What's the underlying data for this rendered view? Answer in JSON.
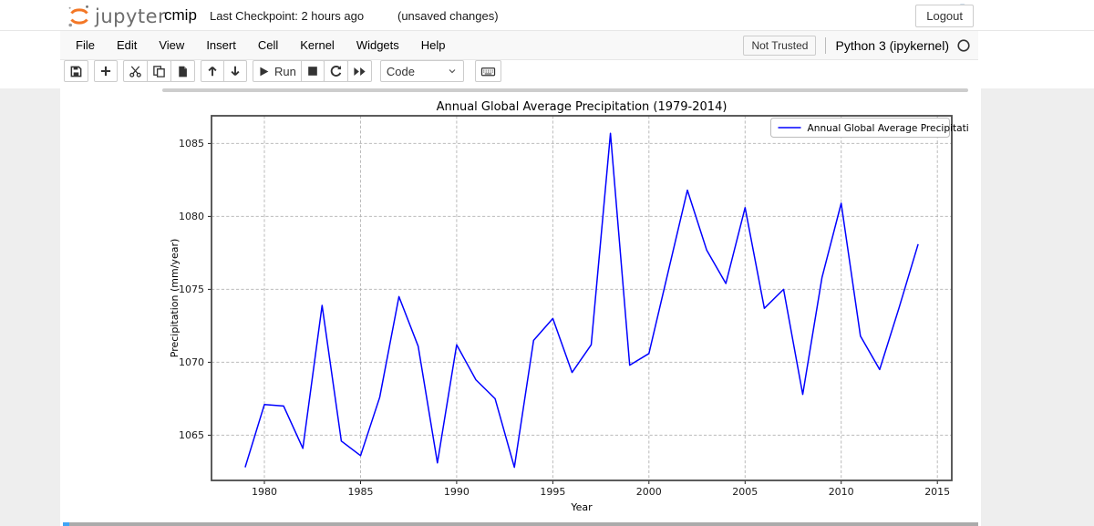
{
  "header": {
    "app_name": "jupyter",
    "notebook_title": "cmip",
    "checkpoint": "Last Checkpoint: 2 hours ago",
    "unsaved": "(unsaved changes)",
    "logout_label": "Logout"
  },
  "menubar": {
    "items": [
      "File",
      "Edit",
      "View",
      "Insert",
      "Cell",
      "Kernel",
      "Widgets",
      "Help"
    ],
    "not_trusted_label": "Not Trusted",
    "kernel_name": "Python 3 (ipykernel)"
  },
  "toolbar": {
    "run_label": "Run",
    "cell_type_value": "Code"
  },
  "colors": {
    "line_blue": "#0000ff",
    "jupyter_orange": "#f37726",
    "python_blue": "#3776ab",
    "python_yellow": "#ffd43b",
    "selected_cell_blue": "#42a5f5"
  },
  "chart_data": {
    "type": "line",
    "title": "Annual Global Average Precipitation (1979-2014)",
    "xlabel": "Year",
    "ylabel": "Precipitation (mm/year)",
    "xlim": [
      1977.25,
      2015.75
    ],
    "ylim": [
      1061.9,
      1086.9
    ],
    "xticks": [
      1980,
      1985,
      1990,
      1995,
      2000,
      2005,
      2010,
      2015
    ],
    "yticks": [
      1065,
      1070,
      1075,
      1080,
      1085
    ],
    "grid": true,
    "legend": {
      "position": "upper right",
      "entries": [
        "Annual Global Average Precipitation"
      ]
    },
    "x": [
      1979,
      1980,
      1981,
      1982,
      1983,
      1984,
      1985,
      1986,
      1987,
      1988,
      1989,
      1990,
      1991,
      1992,
      1993,
      1994,
      1995,
      1996,
      1997,
      1998,
      1999,
      2000,
      2001,
      2002,
      2003,
      2004,
      2005,
      2006,
      2007,
      2008,
      2009,
      2010,
      2011,
      2012,
      2013,
      2014
    ],
    "series": [
      {
        "name": "Annual Global Average Precipitation",
        "color": "#0000ff",
        "values": [
          1062.8,
          1067.1,
          1067.0,
          1064.1,
          1073.9,
          1064.6,
          1063.6,
          1067.6,
          1074.5,
          1071.1,
          1063.1,
          1071.2,
          1068.8,
          1067.5,
          1062.8,
          1071.5,
          1073.0,
          1069.3,
          1071.2,
          1085.7,
          1069.8,
          1070.6,
          1076.2,
          1081.8,
          1077.7,
          1075.4,
          1080.6,
          1073.7,
          1075.0,
          1067.8,
          1075.8,
          1080.9,
          1071.8,
          1069.5,
          1073.7,
          1078.1
        ]
      }
    ]
  }
}
